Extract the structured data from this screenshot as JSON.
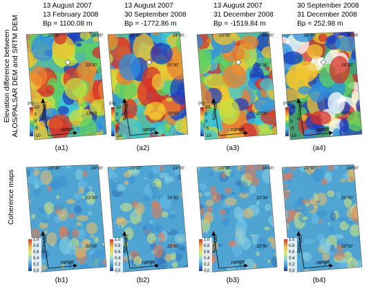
{
  "headers": [
    {
      "line1": "13 August 2007",
      "line2": "13 February 2008",
      "line3": "Bp = 1100.08 m"
    },
    {
      "line1": "13 August 2007",
      "line2": "30 September 2008",
      "line3": "Bp = -1772.86 m"
    },
    {
      "line1": "13 August 2007",
      "line2": "31 December 2008",
      "line3": "Bp = -1519.84 m"
    },
    {
      "line1": "30 September 2008",
      "line2": "31 December 2008",
      "line3": "Bp = 252.98 m"
    }
  ],
  "row_labels": {
    "top_line1": "Elevation difference between",
    "top_line2": "ALOS/PALSAR DEM and SRTM DEM",
    "bottom": "Coherence maps"
  },
  "panel_labels_top": [
    "(a1)",
    "(a2)",
    "(a3)",
    "(a4)"
  ],
  "panel_labels_bottom": [
    "(b1)",
    "(b2)",
    "(b3)",
    "(b4)"
  ],
  "map_ticks": {
    "lon_left": "23°30'",
    "lon_right": "24°00'",
    "lat_mid": "23°30'",
    "lat_low": "23°00'"
  },
  "axis_labels": {
    "azimuth": "azimuth",
    "range": "range"
  },
  "elev_colorbar": {
    "unit": "(m)",
    "ticks": [
      "10",
      "5",
      "0",
      "-5",
      "-10"
    ]
  },
  "coh_colorbar": {
    "ticks": [
      "1.0",
      "0.8",
      "0.6",
      "0.4",
      "0.2",
      "0.0"
    ]
  },
  "colors": {
    "hillshade": "#9a9a9a",
    "coh_base": "#4aa6d8",
    "elev_red": "#d73027",
    "elev_blue": "#2c5fbf"
  }
}
